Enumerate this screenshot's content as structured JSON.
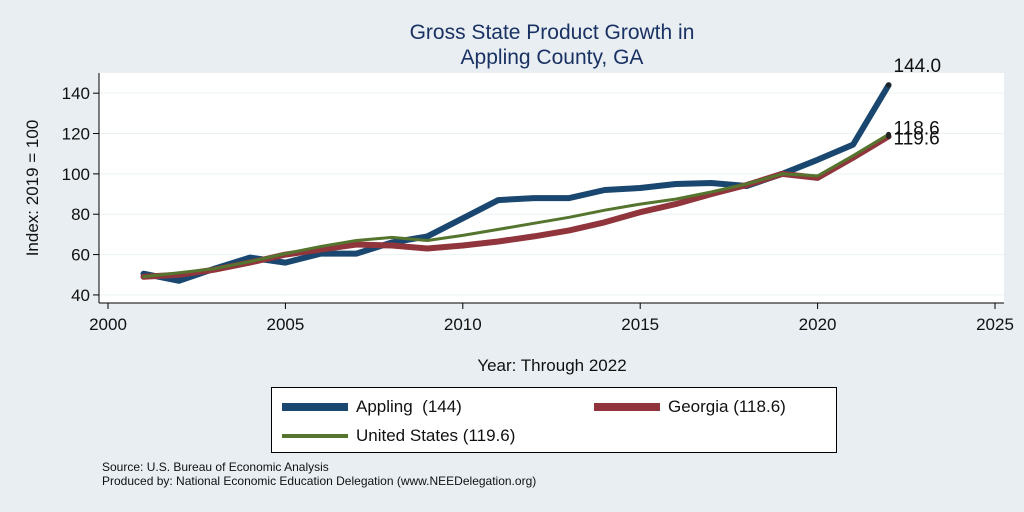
{
  "title_line1": "Gross State Product Growth in",
  "title_line2": "Appling County, GA",
  "chart_data": {
    "type": "line",
    "title": "Gross State Product Growth in Appling County, GA",
    "xlabel": "Year: Through 2022",
    "ylabel": "Index: 2019 = 100",
    "xlim": [
      2000,
      2025
    ],
    "ylim": [
      36,
      150
    ],
    "x_ticks": [
      2000,
      2005,
      2010,
      2015,
      2020,
      2025
    ],
    "y_ticks": [
      40,
      60,
      80,
      100,
      120,
      140
    ],
    "x": [
      2001,
      2002,
      2003,
      2004,
      2005,
      2006,
      2007,
      2008,
      2009,
      2010,
      2011,
      2012,
      2013,
      2014,
      2015,
      2016,
      2017,
      2018,
      2019,
      2020,
      2021,
      2022
    ],
    "series": [
      {
        "name": "Appling",
        "legend_label": "Appling  (144)",
        "color": "#1a476f",
        "end_label": "144.0",
        "values": [
          50.5,
          47,
          53,
          58.5,
          56,
          60.5,
          60.5,
          66,
          69,
          78,
          87,
          88,
          88,
          92,
          93,
          95,
          95.5,
          94,
          100,
          107,
          114.5,
          144
        ]
      },
      {
        "name": "Georgia",
        "legend_label": "Georgia (118.6)",
        "color": "#90353b",
        "end_label": "118.6",
        "values": [
          49,
          50,
          52.5,
          56,
          60,
          62.5,
          65,
          64.5,
          63,
          64.5,
          66.5,
          69,
          72,
          76,
          81,
          85,
          90,
          94.5,
          100,
          98,
          108,
          118.6
        ]
      },
      {
        "name": "United States",
        "legend_label": "United States (119.6)",
        "color": "#55752f",
        "end_label": "119.6",
        "values": [
          49,
          51,
          53,
          56.5,
          60.5,
          64,
          67,
          68.5,
          67,
          69.5,
          72.5,
          75.5,
          78.5,
          82,
          85,
          87.5,
          91,
          95,
          100,
          99,
          109,
          119.6
        ]
      }
    ]
  },
  "source_line1": "Source: U.S. Bureau of Economic Analysis",
  "source_line2": "Produced by: National Economic Education Delegation (www.NEEDelegation.org)"
}
